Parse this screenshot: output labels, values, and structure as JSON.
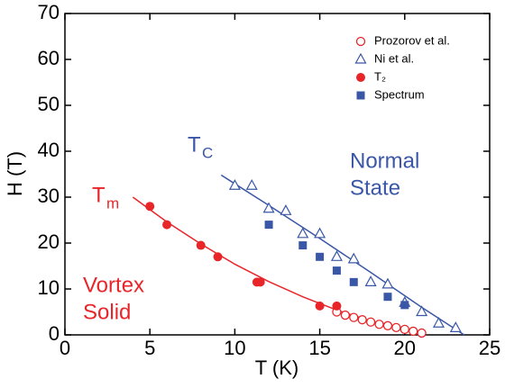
{
  "chart_data": {
    "type": "scatter",
    "xlabel": "T (K)",
    "ylabel": "H (T)",
    "xlim": [
      0,
      25
    ],
    "xticks": [
      0,
      5,
      10,
      15,
      20,
      25
    ],
    "ylim": [
      0,
      70
    ],
    "yticks": [
      0,
      10,
      20,
      30,
      40,
      50,
      60,
      70
    ],
    "legend": "upper right",
    "series": [
      {
        "name": "Prozorov et al.",
        "color": "#e8262a",
        "marker": "open-circle",
        "x": [
          16,
          16.5,
          17,
          17.5,
          18,
          18.5,
          19,
          19.5,
          20,
          20.5,
          21
        ],
        "values": [
          5,
          4.3,
          3.8,
          3.3,
          2.8,
          2.3,
          2,
          1.6,
          1.2,
          0.8,
          0.4
        ]
      },
      {
        "name": "Ni et al.",
        "color": "#3a57a7",
        "marker": "open-triangle",
        "x": [
          10,
          11,
          12,
          13,
          14,
          15,
          16,
          17,
          18,
          19,
          20,
          21,
          22,
          23
        ],
        "values": [
          32.5,
          32.5,
          27.5,
          27,
          22,
          22,
          17,
          16.5,
          11.5,
          11,
          7,
          5,
          2.5,
          1.5
        ]
      },
      {
        "name": "T₂",
        "color": "#e8262a",
        "marker": "filled-circle",
        "x": [
          5,
          6,
          8,
          9,
          11.3,
          11.5,
          15,
          16
        ],
        "values": [
          28,
          24,
          19.5,
          17,
          11.5,
          11.5,
          6.3,
          6.3
        ]
      },
      {
        "name": "Spectrum",
        "color": "#3a57a7",
        "marker": "filled-square",
        "x": [
          12,
          14,
          15,
          16,
          17,
          19,
          20
        ],
        "values": [
          24,
          19.5,
          17,
          14,
          11.5,
          8.3,
          6.5
        ]
      }
    ],
    "fit_lines": [
      {
        "color": "#e8262a",
        "x": [
          4,
          5,
          6,
          8,
          10,
          12,
          14,
          16,
          18,
          20,
          21
        ],
        "values": [
          30,
          27.3,
          24.6,
          19.8,
          15.4,
          11.6,
          8.3,
          5.4,
          3,
          1.1,
          0.3
        ]
      },
      {
        "color": "#3a57a7",
        "x": [
          9.2,
          12,
          15,
          18,
          21,
          23.5
        ],
        "values": [
          34.8,
          28.2,
          21,
          13.6,
          6,
          0
        ]
      }
    ],
    "annotations": [
      {
        "text": "T",
        "sub": "C",
        "color": "#3a57a7"
      },
      {
        "lines": [
          "Normal",
          "State"
        ],
        "color": "#3a57a7"
      },
      {
        "text": "T",
        "sub": "m",
        "color": "#e8262a"
      },
      {
        "lines": [
          "Vortex",
          "Solid"
        ],
        "color": "#e8262a"
      }
    ]
  }
}
